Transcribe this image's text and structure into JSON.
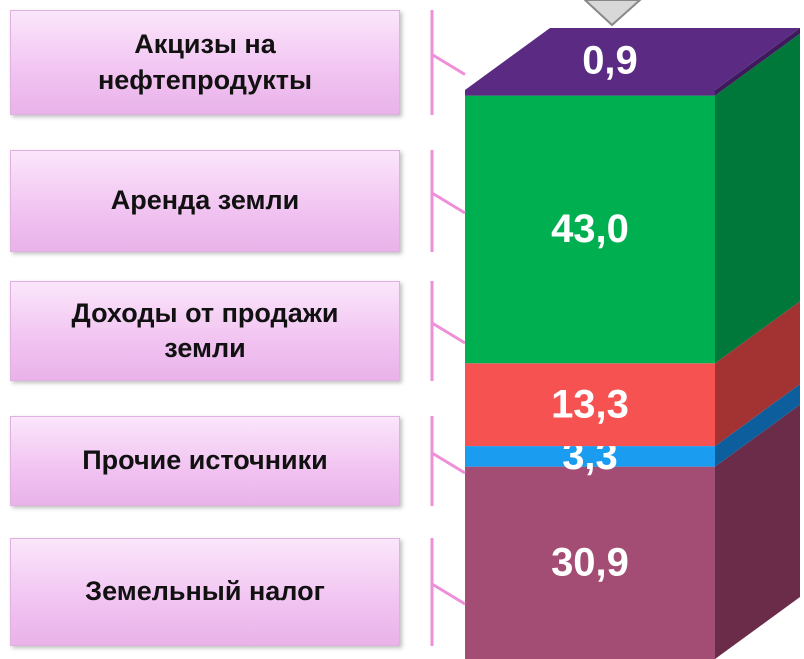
{
  "chart_data": {
    "type": "bar3d",
    "categories": [
      null
    ],
    "series": [
      {
        "name": "Земельный налог",
        "color": "#a34d74",
        "side_color": "#6a2c49",
        "values": [
          30.9
        ],
        "value_labels": [
          "30,9"
        ]
      },
      {
        "name": "Прочие источники",
        "color": "#1a9cf0",
        "side_color": "#0c5e9c",
        "values": [
          3.3
        ],
        "value_labels": [
          "3,3"
        ]
      },
      {
        "name": "Доходы от продажи земли",
        "color": "#f65252",
        "side_color": "#a33333",
        "values": [
          13.3
        ],
        "value_labels": [
          "13,3"
        ]
      },
      {
        "name": "Аренда земли",
        "color": "#00b050",
        "side_color": "#00783a",
        "values": [
          43.0
        ],
        "value_labels": [
          "43,0"
        ]
      },
      {
        "name": "Акцизы на нефтепродукты",
        "color": "#5b2a82",
        "side_color": "#3e1a5c",
        "values": [
          0.9
        ],
        "value_labels": [
          "0,9"
        ]
      }
    ]
  }
}
